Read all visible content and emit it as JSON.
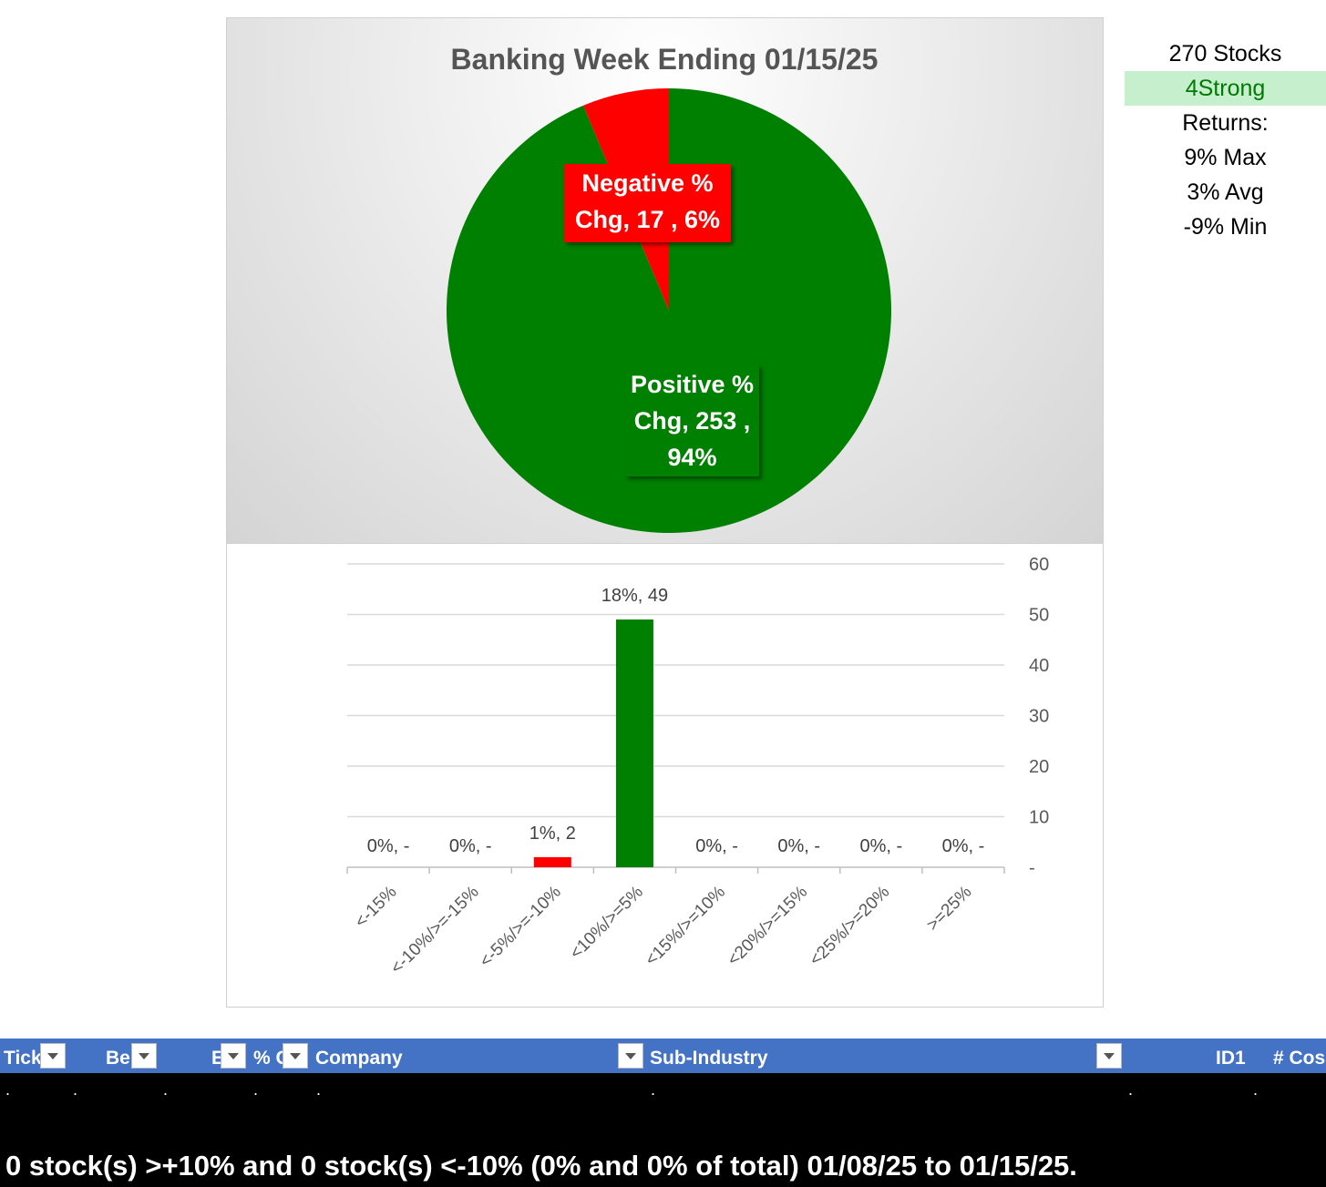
{
  "chart_data": [
    {
      "type": "pie",
      "title": "Banking Week Ending 01/15/25",
      "slices": [
        {
          "name": "Negative % Chg",
          "value": 17,
          "percent": "6%",
          "color": "#ff0000",
          "label_lines": [
            "Negative %",
            "Chg,  17 , 6%"
          ]
        },
        {
          "name": "Positive % Chg",
          "value": 253,
          "percent": "94%",
          "color": "#008000",
          "label_lines": [
            "Positive %",
            "Chg,  253 ,",
            "94%"
          ]
        }
      ]
    },
    {
      "type": "bar",
      "categories": [
        "<-15%",
        "<-10%/>=-15%",
        "<-5%/>=-10%",
        "<10%/>=5%",
        "<15%/>=10%",
        "<20%/>=15%",
        "<25%/>=20%",
        ">=25%"
      ],
      "values": [
        0,
        0,
        2,
        49,
        0,
        0,
        0,
        0
      ],
      "data_labels": [
        "0%,  -",
        "0%,  -",
        "1%,  2",
        "18%,  49",
        "0%,  -",
        "0%,  -",
        "0%,  -",
        "0%,  -"
      ],
      "colors": [
        "#ff0000",
        "#ff0000",
        "#ff0000",
        "#008000",
        "#008000",
        "#008000",
        "#008000",
        "#008000"
      ],
      "ylim": [
        0,
        60
      ],
      "yticks": [
        {
          "value": 0,
          "label": "-"
        },
        {
          "value": 10,
          "label": "10"
        },
        {
          "value": 20,
          "label": "20"
        },
        {
          "value": 30,
          "label": "30"
        },
        {
          "value": 40,
          "label": "40"
        },
        {
          "value": 50,
          "label": "50"
        },
        {
          "value": 60,
          "label": "60"
        }
      ],
      "y_axis_side": "right",
      "grid": true
    }
  ],
  "stats": {
    "stocks": "270 Stocks",
    "strength": "4Strong",
    "returns_label": "Returns:",
    "max": "9% Max",
    "avg": "3% Avg",
    "min": "-9% Min"
  },
  "table": {
    "headers": [
      "Tick",
      "Be",
      "E",
      "% C",
      "Company",
      "Sub-Industry",
      "ID1",
      "# Cos"
    ],
    "row_dots": [
      ".",
      ".",
      ".",
      ".",
      ".",
      ".",
      ".",
      "."
    ],
    "summary": "0 stock(s) >+10% and 0 stock(s) <-10% (0% and 0% of total) 01/08/25 to 01/15/25."
  }
}
